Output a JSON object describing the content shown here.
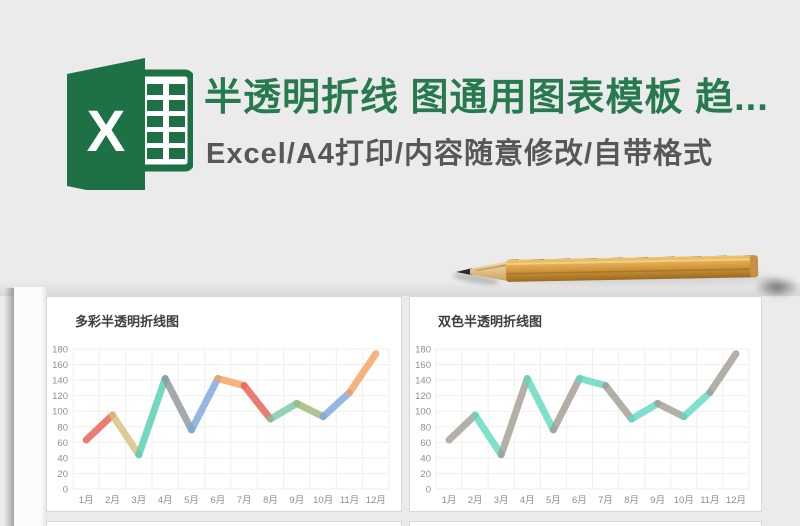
{
  "header": {
    "title": "半透明折线 图通用图表模板 趋...",
    "subtitle": "Excel/A4打印/内容随意修改/自带格式",
    "title_color": "#27794e",
    "subtitle_color": "#575757",
    "logo_letter": "X",
    "logo_green": "#1e7145"
  },
  "page": {
    "background": "#ebebeb",
    "card_background": "#ffffff",
    "card_border": "#d8d8d8"
  },
  "chart_data": [
    {
      "type": "line",
      "title": "多彩半透明折线图",
      "categories": [
        "1月",
        "2月",
        "3月",
        "4月",
        "5月",
        "6月",
        "7月",
        "8月",
        "9月",
        "10月",
        "11月",
        "12月"
      ],
      "values": [
        63,
        95,
        44,
        142,
        76,
        142,
        133,
        90,
        110,
        93,
        124,
        174
      ],
      "segment_colors": [
        "#ea5a4f",
        "#d4bf7e",
        "#4fcfb0",
        "#8d939a",
        "#79a6da",
        "#f5a05e",
        "#ea5a4f",
        "#77c9a4",
        "#9bb674",
        "#79a6da",
        "#f5a05e"
      ],
      "y_ticks": [
        0,
        20,
        40,
        60,
        80,
        100,
        120,
        140,
        160,
        180
      ],
      "ylim": [
        0,
        180
      ],
      "grid": true,
      "grid_color": "#efefef",
      "axis_color": "#8e8e8e",
      "line_opacity": 0.8,
      "legend": "none"
    },
    {
      "type": "line",
      "title": "双色半透明折线图",
      "categories": [
        "1月",
        "2月",
        "3月",
        "4月",
        "5月",
        "6月",
        "7月",
        "8月",
        "9月",
        "10月",
        "11月",
        "12月"
      ],
      "values": [
        63,
        95,
        44,
        142,
        76,
        142,
        133,
        90,
        110,
        93,
        124,
        174
      ],
      "segment_colors": [
        "#a19b91",
        "#5fd8bf",
        "#a19b91",
        "#5fd8bf",
        "#a19b91",
        "#5fd8bf",
        "#a19b91",
        "#5fd8bf",
        "#a19b91",
        "#5fd8bf",
        "#a19b91"
      ],
      "y_ticks": [
        0,
        20,
        40,
        60,
        80,
        100,
        120,
        140,
        160,
        180
      ],
      "ylim": [
        0,
        180
      ],
      "grid": true,
      "grid_color": "#efefef",
      "axis_color": "#8e8e8e",
      "line_opacity": 0.8,
      "legend": "none"
    }
  ]
}
